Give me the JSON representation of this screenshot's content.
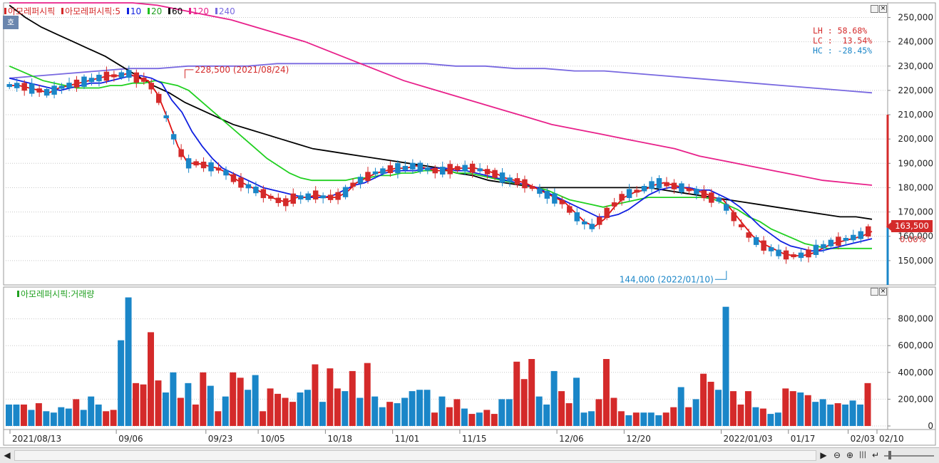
{
  "window": {
    "price_legend": {
      "symbol_label": "아모레퍼시픽",
      "ma_label": "아모레퍼시픽:5",
      "ma_periods": [
        "10",
        "20",
        "60",
        "120",
        "240"
      ],
      "corner_tag": "호"
    },
    "volume_legend": {
      "label": "아모레퍼시픽:거래량"
    },
    "stats": {
      "lh_label": "LH :",
      "lh_value": "58.68%",
      "lc_label": "LC :",
      "lc_value": "13.54%",
      "hc_label": "HC :",
      "hc_value": "-28.45%"
    },
    "current_price_label": "163,500",
    "change_label": "0.00%"
  },
  "colors": {
    "up": "#d42a2a",
    "down": "#1a86c8",
    "ma5": "#e01010",
    "ma10": "#1020e0",
    "ma20": "#20d020",
    "ma60": "#000000",
    "ma120": "#e8208a",
    "ma240": "#7868e0"
  },
  "chart_data": [
    {
      "type": "candlestick",
      "y_ticks": [
        "150,000",
        "160,000",
        "170,000",
        "180,000",
        "190,000",
        "200,000",
        "210,000",
        "220,000",
        "230,000",
        "240,000",
        "250,000"
      ],
      "ylim": [
        140000,
        256000
      ],
      "annotations": [
        {
          "text": "228,500 (2021/08/24)",
          "value": 228500,
          "date": "2021/08/24"
        },
        {
          "text": "144,000 (2022/01/10)",
          "value": 144000,
          "date": "2022/01/10"
        }
      ],
      "moving_averages": [
        {
          "name": "5",
          "values": [
            222,
            222,
            221,
            220,
            219,
            221,
            222,
            223,
            224,
            225,
            226,
            226,
            227,
            225,
            224,
            218,
            208,
            197,
            190,
            190,
            189,
            188,
            186,
            183,
            181,
            179,
            177,
            175,
            174,
            176,
            176,
            177,
            176,
            176,
            178,
            182,
            184,
            186,
            187,
            188,
            188,
            189,
            188,
            187,
            187,
            188,
            188,
            188,
            187,
            186,
            184,
            183,
            182,
            180,
            178,
            176,
            174,
            170,
            166,
            164,
            167,
            172,
            176,
            178,
            179,
            181,
            182,
            181,
            180,
            179,
            178,
            176,
            175,
            170,
            165,
            160,
            157,
            155,
            153,
            152,
            152,
            153,
            155,
            157,
            158,
            159,
            160,
            162
          ]
        },
        {
          "name": "10",
          "values": [
            225,
            224,
            223,
            222,
            221,
            220,
            221,
            222,
            223,
            223,
            224,
            225,
            226,
            226,
            225,
            223,
            216,
            211,
            203,
            197,
            192,
            188,
            186,
            184,
            182,
            180,
            179,
            178,
            177,
            176,
            176,
            176,
            177,
            179,
            181,
            182,
            184,
            186,
            187,
            187,
            187,
            188,
            188,
            188,
            187,
            187,
            186,
            185,
            184,
            183,
            182,
            181,
            180,
            178,
            176,
            174,
            172,
            170,
            168,
            168,
            169,
            171,
            174,
            177,
            179,
            180,
            180,
            180,
            179,
            179,
            177,
            175,
            172,
            168,
            164,
            161,
            158,
            156,
            155,
            154,
            154,
            155,
            156,
            157,
            158,
            159
          ]
        },
        {
          "name": "20",
          "values": [
            230,
            228,
            226,
            224,
            223,
            222,
            221,
            221,
            221,
            222,
            222,
            223,
            223,
            224,
            223,
            222,
            220,
            216,
            212,
            208,
            204,
            200,
            196,
            192,
            189,
            186,
            184,
            183,
            183,
            183,
            183,
            184,
            184,
            185,
            185,
            186,
            186,
            187,
            187,
            187,
            186,
            186,
            185,
            184,
            183,
            182,
            181,
            180,
            179,
            177,
            175,
            174,
            173,
            172,
            173,
            174,
            175,
            176,
            176,
            176,
            176,
            176,
            176,
            175,
            173,
            171,
            168,
            166,
            163,
            161,
            159,
            157,
            156,
            155,
            155,
            155,
            155,
            155
          ]
        },
        {
          "name": "60",
          "values": [
            255,
            250,
            246,
            243,
            240,
            237,
            234,
            230,
            226,
            222,
            219,
            215,
            212,
            209,
            206,
            204,
            202,
            200,
            198,
            196,
            195,
            194,
            193,
            192,
            191,
            190,
            189,
            188,
            186,
            185,
            183,
            182,
            181,
            180,
            180,
            180,
            180,
            180,
            180,
            180,
            180,
            179,
            178,
            177,
            176,
            175,
            174,
            173,
            172,
            171,
            170,
            169,
            168,
            168,
            167
          ]
        },
        {
          "name": "120",
          "values": [
            256,
            256,
            256,
            256,
            256,
            256,
            255,
            253,
            251,
            249,
            246,
            243,
            240,
            236,
            232,
            228,
            224,
            221,
            218,
            215,
            212,
            209,
            206,
            204,
            202,
            200,
            198,
            196,
            193,
            191,
            189,
            187,
            185,
            183,
            182,
            181
          ]
        },
        {
          "name": "240",
          "values": [
            225,
            226,
            227,
            228,
            229,
            229,
            230,
            230,
            230,
            231,
            231,
            231,
            231,
            231,
            231,
            230,
            230,
            229,
            229,
            228,
            228,
            227,
            226,
            225,
            224,
            223,
            222,
            221,
            220,
            219
          ]
        }
      ],
      "current_price": 163500
    },
    {
      "type": "bar",
      "title": "아모레퍼시픽:거래량",
      "y_ticks": [
        "0",
        "200,000",
        "400,000",
        "600,000",
        "800,000"
      ],
      "ylim": [
        0,
        1000000
      ],
      "values": [
        160000,
        160000,
        160000,
        120000,
        170000,
        110000,
        100000,
        140000,
        130000,
        200000,
        120000,
        220000,
        160000,
        110000,
        120000,
        640000,
        960000,
        320000,
        310000,
        700000,
        340000,
        250000,
        400000,
        210000,
        320000,
        160000,
        400000,
        300000,
        110000,
        220000,
        400000,
        360000,
        270000,
        380000,
        110000,
        280000,
        240000,
        210000,
        180000,
        250000,
        270000,
        460000,
        180000,
        430000,
        280000,
        260000,
        410000,
        210000,
        470000,
        220000,
        140000,
        180000,
        170000,
        210000,
        260000,
        270000,
        270000,
        100000,
        220000,
        140000,
        200000,
        130000,
        90000,
        100000,
        120000,
        90000,
        200000,
        200000,
        480000,
        350000,
        500000,
        220000,
        160000,
        410000,
        260000,
        170000,
        360000,
        100000,
        110000,
        200000,
        500000,
        210000,
        110000,
        80000,
        100000,
        100000,
        100000,
        80000,
        100000,
        140000,
        290000,
        140000,
        200000,
        390000,
        330000,
        270000,
        890000,
        260000,
        160000,
        260000,
        140000,
        130000,
        90000,
        100000,
        280000,
        260000,
        250000,
        230000,
        180000,
        200000,
        160000,
        170000,
        160000,
        190000,
        160000,
        320000
      ],
      "up_flags": [
        0,
        0,
        1,
        0,
        1,
        0,
        0,
        0,
        0,
        1,
        0,
        0,
        0,
        1,
        1,
        0,
        0,
        1,
        1,
        1,
        1,
        0,
        0,
        1,
        0,
        1,
        1,
        0,
        1,
        0,
        1,
        1,
        0,
        0,
        1,
        1,
        1,
        1,
        1,
        0,
        0,
        1,
        0,
        1,
        1,
        0,
        1,
        0,
        1,
        0,
        0,
        1,
        0,
        0,
        0,
        0,
        0,
        1,
        0,
        1,
        1,
        0,
        1,
        0,
        1,
        1,
        0,
        0,
        1,
        1,
        1,
        0,
        0,
        0,
        1,
        1,
        0,
        0,
        0,
        1,
        1,
        1,
        1,
        0,
        1,
        0,
        0,
        0,
        1,
        1,
        0,
        1,
        0,
        1,
        1,
        0,
        0,
        1,
        1,
        1,
        0,
        1,
        0,
        0,
        1,
        1,
        0,
        1,
        0,
        0,
        0,
        1,
        0,
        0,
        0,
        1
      ]
    }
  ],
  "x_axis": {
    "tick_labels": [
      "2021/08/13",
      "09/06",
      "09/23",
      "10/05",
      "10/18",
      "11/01",
      "11/15",
      "12/06",
      "12/20",
      "2022/01/03",
      "01/17",
      "02/03",
      "02/10"
    ]
  }
}
